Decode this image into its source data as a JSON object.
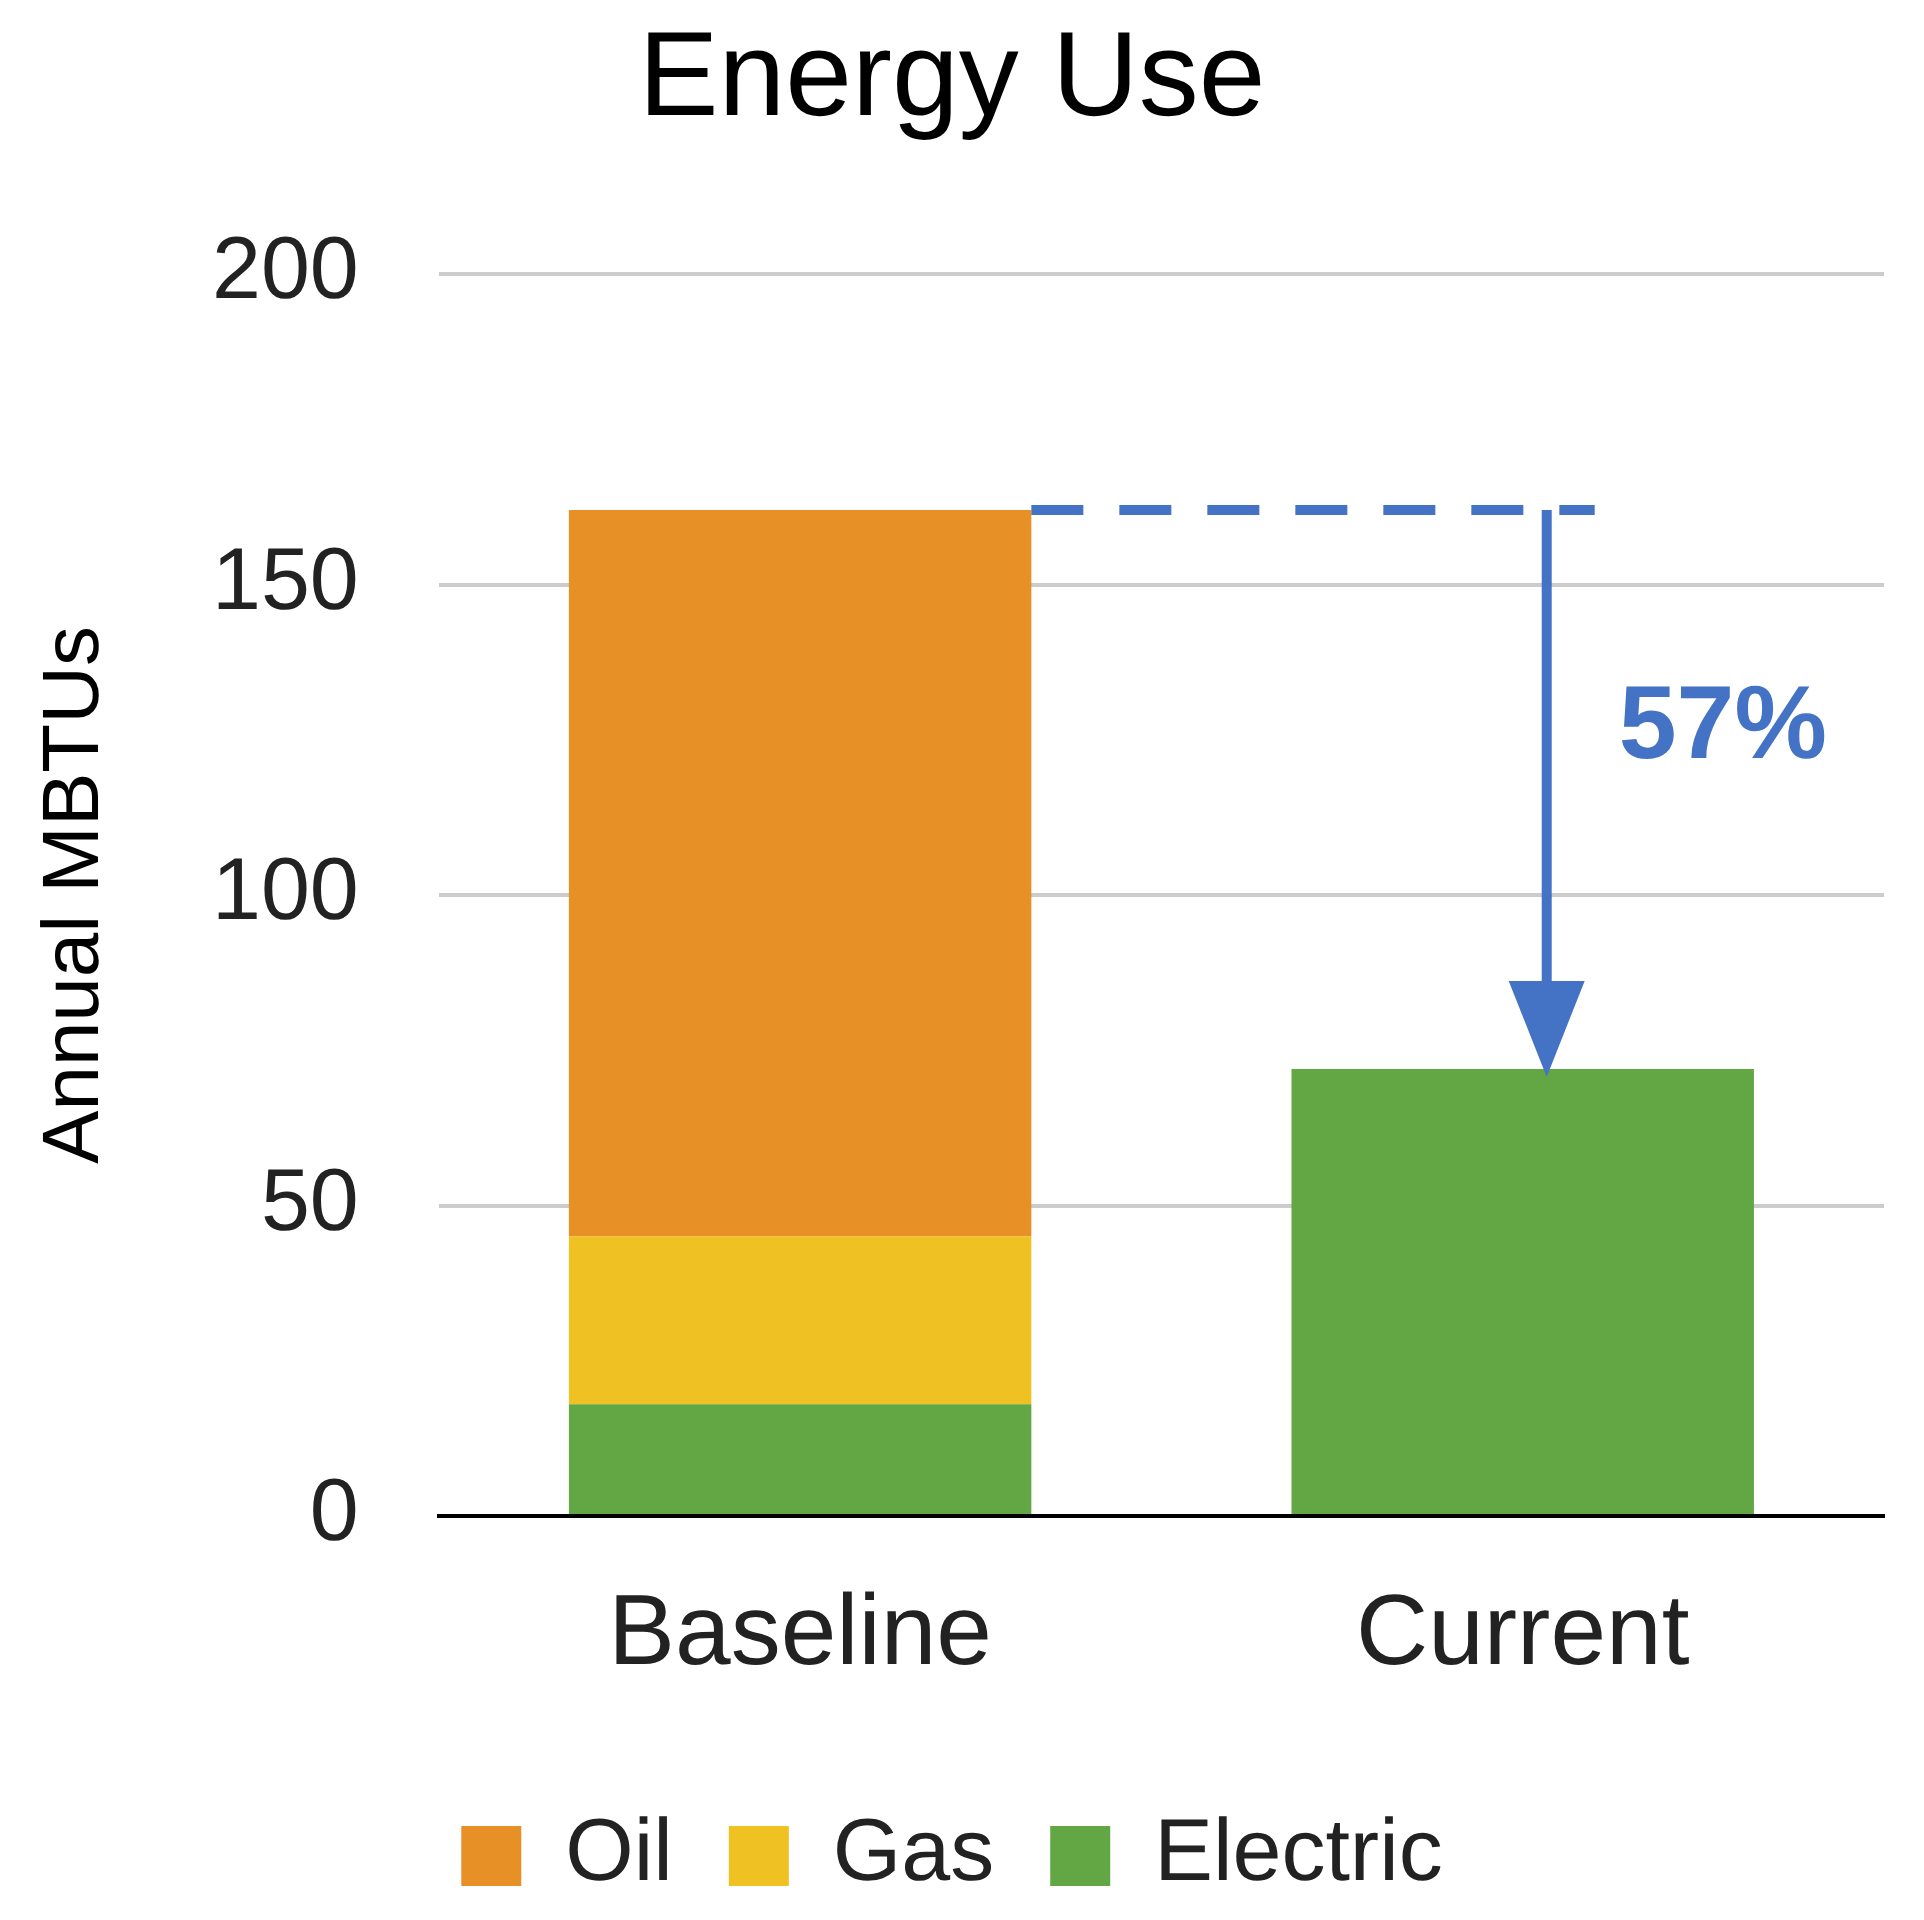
{
  "chart_data": {
    "type": "bar",
    "title": "Energy Use",
    "ylabel": "Annual MBTUs",
    "categories": [
      "Baseline",
      "Current"
    ],
    "stacked": true,
    "series": [
      {
        "name": "Electric",
        "color": "#62a744",
        "values": [
          18,
          72
        ]
      },
      {
        "name": "Gas",
        "color": "#efc122",
        "values": [
          27,
          null
        ]
      },
      {
        "name": "Oil",
        "color": "#e69026",
        "values": [
          117,
          null
        ]
      }
    ],
    "ylim": [
      0,
      200
    ],
    "yticks": [
      0,
      50,
      100,
      150,
      200
    ],
    "grid": "y",
    "legend": "bottom",
    "annotations": [
      "57%"
    ]
  }
}
